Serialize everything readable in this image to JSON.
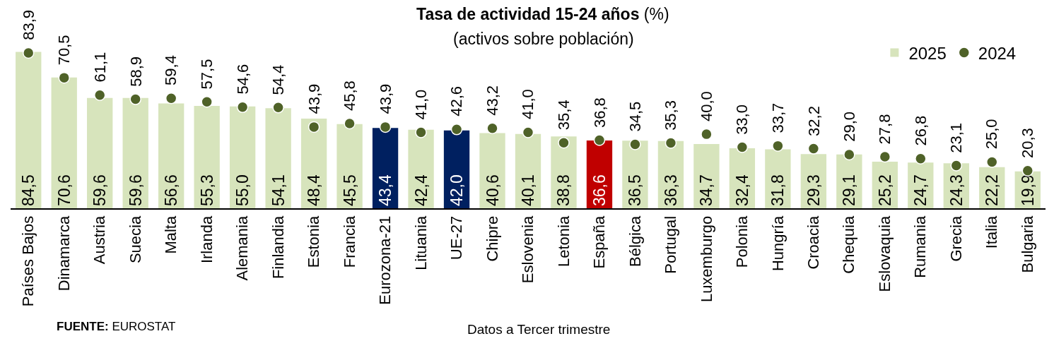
{
  "chart_data": {
    "type": "bar",
    "title": "Tasa de actividad 15-24 años (%)",
    "subtitle": "(activos sobre población)",
    "categories": [
      "Países Bajos",
      "Dinamarca",
      "Austria",
      "Suecia",
      "Malta",
      "Irlanda",
      "Alemania",
      "Finlandia",
      "Estonia",
      "Francia",
      "Eurozona-21",
      "Lituania",
      "UE-27",
      "Chipre",
      "Eslovenia",
      "Letonia",
      "España",
      "Bélgica",
      "Portugal",
      "Luxemburgo",
      "Polonia",
      "Hungría",
      "Croacia",
      "Chequia",
      "Eslovaquia",
      "Rumania",
      "Grecia",
      "Italia",
      "Bulgaria"
    ],
    "series": [
      {
        "name": "2025",
        "color": "#d7e4bc",
        "colors": [
          "#d7e4bc",
          "#d7e4bc",
          "#d7e4bc",
          "#d7e4bc",
          "#d7e4bc",
          "#d7e4bc",
          "#d7e4bc",
          "#d7e4bc",
          "#d7e4bc",
          "#d7e4bc",
          "#002060",
          "#d7e4bc",
          "#002060",
          "#d7e4bc",
          "#d7e4bc",
          "#d7e4bc",
          "#c00000",
          "#d7e4bc",
          "#d7e4bc",
          "#d7e4bc",
          "#d7e4bc",
          "#d7e4bc",
          "#d7e4bc",
          "#d7e4bc",
          "#d7e4bc",
          "#d7e4bc",
          "#d7e4bc",
          "#d7e4bc",
          "#d7e4bc"
        ],
        "values": [
          84.5,
          70.6,
          59.6,
          59.6,
          56.6,
          55.3,
          55.0,
          54.1,
          48.4,
          45.5,
          43.4,
          42.4,
          42.0,
          40.6,
          40.1,
          38.8,
          36.6,
          36.5,
          36.3,
          34.7,
          32.4,
          31.8,
          29.3,
          29.1,
          25.2,
          24.7,
          24.3,
          22.2,
          19.9
        ],
        "value_labels": [
          "84,5",
          "70,6",
          "59,6",
          "59,6",
          "56,6",
          "55,3",
          "55,0",
          "54,1",
          "48,4",
          "45,5",
          "43,4",
          "42,4",
          "42,0",
          "40,6",
          "40,1",
          "38,8",
          "36,6",
          "36,5",
          "36,3",
          "34,7",
          "32,4",
          "31,8",
          "29,3",
          "29,1",
          "25,2",
          "24,7",
          "24,3",
          "22,2",
          "19,9"
        ]
      },
      {
        "name": "2024",
        "type": "scatter",
        "color": "#4f6228",
        "values": [
          83.9,
          70.5,
          61.1,
          58.9,
          59.4,
          57.5,
          54.6,
          54.4,
          43.9,
          45.8,
          43.9,
          41.0,
          42.6,
          43.2,
          41.0,
          35.4,
          36.8,
          34.5,
          35.3,
          40.0,
          33.0,
          33.7,
          32.2,
          29.0,
          27.8,
          26.8,
          23.1,
          25.0,
          20.3
        ],
        "value_labels": [
          "83,9",
          "70,5",
          "61,1",
          "58,9",
          "59,4",
          "57,5",
          "54,6",
          "54,4",
          "43,9",
          "45,8",
          "43,9",
          "41,0",
          "42,6",
          "43,2",
          "41,0",
          "35,4",
          "36,8",
          "34,5",
          "35,3",
          "40,0",
          "33,0",
          "33,7",
          "32,2",
          "29,0",
          "27,8",
          "26,8",
          "23,1",
          "25,0",
          "20,3"
        ]
      }
    ],
    "tick_labels": "x",
    "marker": "circle",
    "legend": "top right",
    "annotations": [
      "FUENTE: EUROSTAT",
      "Datos a Tercer trimestre"
    ]
  }
}
